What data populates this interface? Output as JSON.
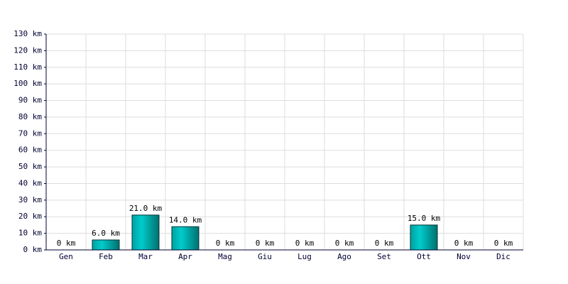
{
  "chart_data": {
    "type": "bar",
    "categories": [
      "Gen",
      "Feb",
      "Mar",
      "Apr",
      "Mag",
      "Giu",
      "Lug",
      "Ago",
      "Set",
      "Ott",
      "Nov",
      "Dic"
    ],
    "values": [
      0,
      6,
      21,
      14,
      0,
      0,
      0,
      0,
      0,
      15,
      0,
      0
    ],
    "value_labels": [
      "0 km",
      "6.0 km",
      "21.0 km",
      "14.0 km",
      "0 km",
      "0 km",
      "0 km",
      "0 km",
      "0 km",
      "15.0 km",
      "0 km",
      "0 km"
    ],
    "color": "#00cccc",
    "ylim": [
      0,
      130
    ],
    "yticks": [
      {
        "value": 0,
        "label": "0 km"
      },
      {
        "value": 10,
        "label": "10 km"
      },
      {
        "value": 20,
        "label": "20 km"
      },
      {
        "value": 30,
        "label": "30 km"
      },
      {
        "value": 40,
        "label": "40 km"
      },
      {
        "value": 50,
        "label": "50 km"
      },
      {
        "value": 60,
        "label": "60 km"
      },
      {
        "value": 70,
        "label": "70 km"
      },
      {
        "value": 80,
        "label": "80 km"
      },
      {
        "value": 90,
        "label": "90 km"
      },
      {
        "value": 100,
        "label": "100 km"
      },
      {
        "value": 110,
        "label": "110 km"
      },
      {
        "value": 120,
        "label": "120 km"
      },
      {
        "value": 130,
        "label": "130 km"
      }
    ],
    "grid": true
  }
}
